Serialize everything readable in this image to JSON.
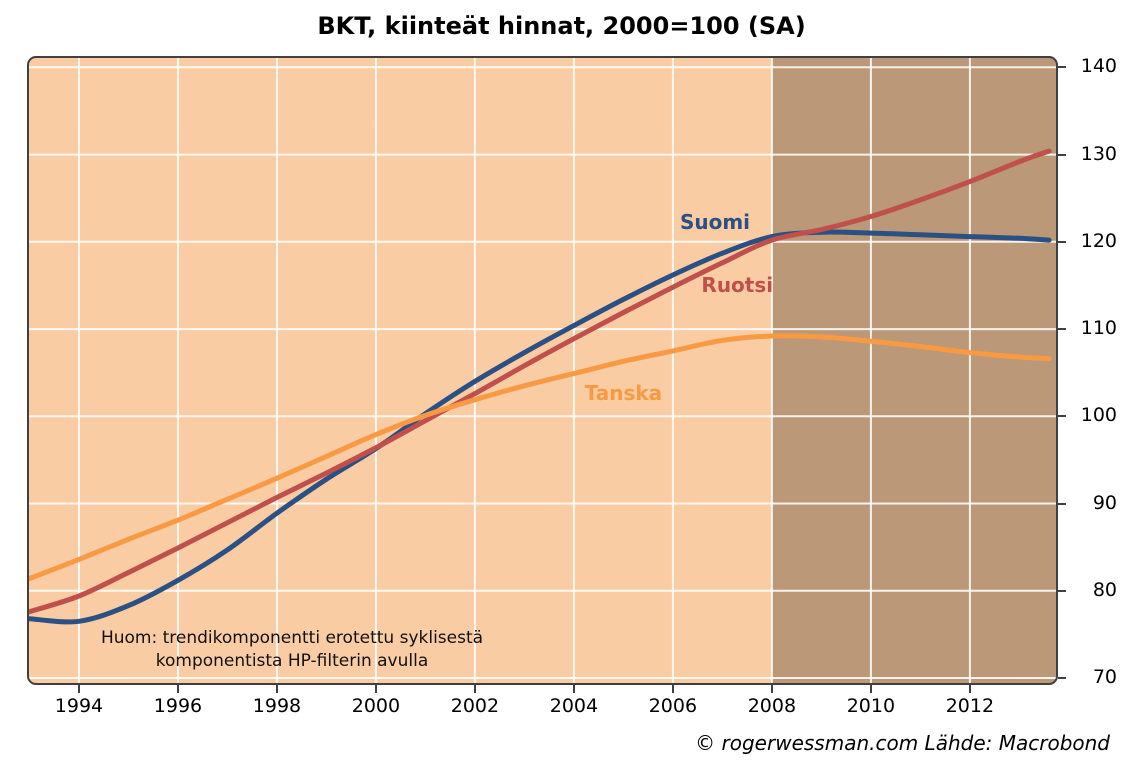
{
  "title": "BKT, kiinteät hinnat, 2000=100 (SA)",
  "footer_credit": "© rogerwessman.com Lähde: Macrobond",
  "note": {
    "line1": "Huom: trendikomponentti erotettu syklisestä",
    "line2": "komponentista HP-filterin avulla"
  },
  "chart_data": {
    "type": "line",
    "title": "BKT, kiinteät hinnat, 2000=100 (SA)",
    "x": [
      1993,
      1994,
      1995,
      1996,
      1997,
      1998,
      1999,
      2000,
      2001,
      2002,
      2003,
      2004,
      2005,
      2006,
      2007,
      2008,
      2009,
      2010,
      2011,
      2012,
      2013,
      2013.6
    ],
    "series": [
      {
        "name": "Suomi",
        "color": "#2B5083",
        "values": [
          76.8,
          76.5,
          78.3,
          81.2,
          84.7,
          88.9,
          92.8,
          96.3,
          100.3,
          104.0,
          107.3,
          110.4,
          113.4,
          116.2,
          118.7,
          120.6,
          121.1,
          121.0,
          120.8,
          120.6,
          120.4,
          120.2
        ],
        "label_x": 2006.85,
        "label_y": 122.3
      },
      {
        "name": "Ruotsi",
        "color": "#BF504C",
        "values": [
          77.6,
          79.4,
          82.1,
          84.9,
          87.8,
          90.7,
          93.5,
          96.4,
          99.5,
          102.6,
          105.8,
          108.9,
          111.9,
          114.8,
          117.6,
          120.2,
          121.4,
          122.9,
          124.8,
          126.9,
          129.2,
          130.4
        ],
        "label_x": 2007.3,
        "label_y": 115.0
      },
      {
        "name": "Tanska",
        "color": "#F89A44",
        "values": [
          81.4,
          83.6,
          85.9,
          88.1,
          90.5,
          92.9,
          95.4,
          97.9,
          100.1,
          101.9,
          103.5,
          104.9,
          106.3,
          107.5,
          108.7,
          109.2,
          109.1,
          108.6,
          108.0,
          107.3,
          106.8,
          106.6
        ],
        "label_x": 2005.0,
        "label_y": 102.7
      }
    ],
    "x_ticks": [
      1994,
      1996,
      1998,
      2000,
      2002,
      2004,
      2006,
      2008,
      2010,
      2012
    ],
    "y_ticks": [
      70,
      80,
      90,
      100,
      110,
      120,
      130,
      140
    ],
    "xlim": [
      1992.95,
      2013.78
    ],
    "ylim": [
      69.2,
      141.3
    ],
    "grid": true,
    "legend_position": "inline-labels",
    "shaded_region": {
      "from": 2008,
      "to": 2013.78
    },
    "colors": {
      "plot_bg": "#FACCA4",
      "shaded_bg": "#BA9878",
      "gridline": "#FFFFFF",
      "border": "#404040"
    }
  }
}
